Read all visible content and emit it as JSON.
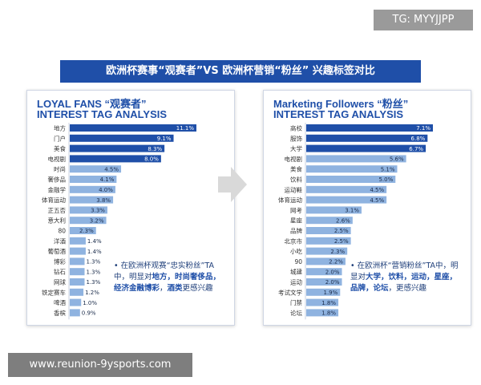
{
  "watermark": "TG: MYYJJPP",
  "banner": "欧洲杯赛事“观赛者”VS 欧洲杯营销“粉丝” 兴趣标签对比",
  "url": "www.reunion-9ysports.com",
  "chart_data": [
    {
      "type": "bar",
      "title": "LOYAL FANS “观赛者”",
      "subtitle": "INTEREST TAG ANALYSIS",
      "categories": [
        "地方",
        "门户",
        "美食",
        "电视剧",
        "时尚",
        "奢侈品",
        "金融学",
        "体育运动",
        "正五否",
        "意大利",
        "80",
        "洋酒",
        "葡萄酒",
        "博彩",
        "钻石",
        "网球",
        "铁定赛车",
        "啤酒",
        "香槟"
      ],
      "values": [
        11.1,
        9.1,
        8.3,
        8.0,
        4.5,
        4.1,
        4.0,
        3.8,
        3.3,
        3.2,
        2.3,
        1.4,
        1.4,
        1.3,
        1.3,
        1.3,
        1.2,
        1.0,
        0.9
      ],
      "value_labels": [
        "11.1%",
        "9.1%",
        "8.3%",
        "8.0%",
        "4.5%",
        "4.1%",
        "4.0%",
        "3.8%",
        "3.3%",
        "3.2%",
        "2.3%",
        "1.4%",
        "1.4%",
        "1.3%",
        "1.3%",
        "1.3%",
        "1.2%",
        "1.0%",
        "0.9%"
      ],
      "color_top": "#1f4fa8",
      "color_rest": "#8fb3e0",
      "top_n": 4
    },
    {
      "type": "bar",
      "title": "Marketing Followers “粉丝”",
      "subtitle": "INTEREST TAG ANALYSIS",
      "categories": [
        "高校",
        "服饰",
        "大学",
        "电视剧",
        "美食",
        "饮料",
        "运动鞋",
        "体育运动",
        "网考",
        "星座",
        "品牌",
        "北京市",
        "小吃",
        "90",
        "城建",
        "运动",
        "考试文学",
        "门禁",
        "论坛"
      ],
      "values": [
        7.1,
        6.8,
        6.7,
        5.6,
        5.1,
        5.0,
        4.5,
        4.5,
        3.1,
        2.6,
        2.5,
        2.5,
        2.3,
        2.2,
        2.0,
        2.0,
        1.9,
        1.8,
        1.8
      ],
      "value_labels": [
        "7.1%",
        "6.8%",
        "6.7%",
        "5.6%",
        "5.1%",
        "5.0%",
        "4.5%",
        "4.5%",
        "3.1%",
        "2.6%",
        "2.5%",
        "2.5%",
        "2.3%",
        "2.2%",
        "2.0%",
        "2.0%",
        "1.9%",
        "1.8%",
        "1.8%"
      ],
      "color_top": "#1f4fa8",
      "color_rest": "#8fb3e0",
      "top_n": 3
    }
  ],
  "notes": [
    {
      "segments": [
        {
          "text": "• ",
          "hl": false
        },
        {
          "text": "在欧洲杯观赛“忠实粉丝”TA中，明显对",
          "hl": false
        },
        {
          "text": "地方，时尚奢侈品，经济金融博彩",
          "hl": true
        },
        {
          "text": "，",
          "hl": false
        },
        {
          "text": "酒类",
          "hl": true
        },
        {
          "text": "更感兴趣",
          "hl": false
        }
      ]
    },
    {
      "segments": [
        {
          "text": "• ",
          "hl": false
        },
        {
          "text": "在欧洲杯“营销粉丝”TA中，明显对",
          "hl": false
        },
        {
          "text": "大学，饮料，运动，星座，品牌，论坛",
          "hl": true
        },
        {
          "text": "，更感兴趣",
          "hl": false
        }
      ]
    }
  ]
}
